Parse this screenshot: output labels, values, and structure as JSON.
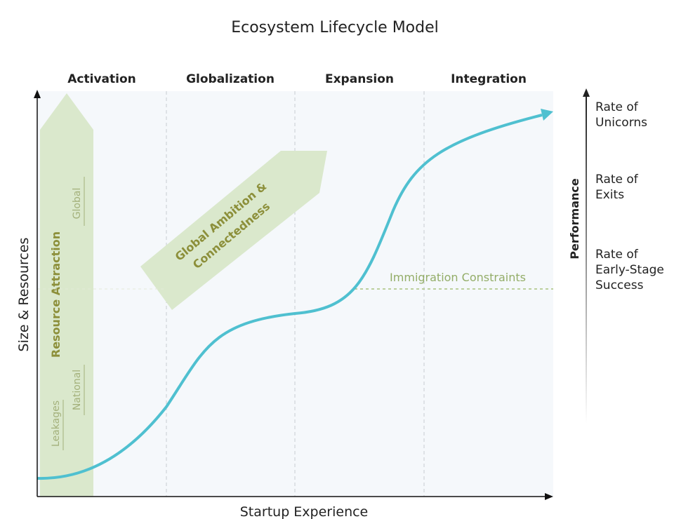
{
  "title": "Ecosystem Lifecycle Model",
  "x_axis_label": "Startup Experience",
  "y_axis_label": "Size & Resources",
  "phases": [
    "Activation",
    "Globalization",
    "Expansion",
    "Integration"
  ],
  "resource_arrow": {
    "label": "Resource Attraction",
    "upper": "Global",
    "middle": "National",
    "lower": "Leakages"
  },
  "ambition_arrow": {
    "lines": [
      "Global Ambition &",
      "Connectedness"
    ]
  },
  "constraint": "Immigration Constraints",
  "performance": {
    "label": "Performance",
    "levels": [
      {
        "lines": [
          "Rate of",
          "Unicorns"
        ]
      },
      {
        "lines": [
          "Rate of",
          "Exits"
        ]
      },
      {
        "lines": [
          "Rate of",
          "Early-Stage",
          "Success"
        ]
      }
    ]
  }
}
